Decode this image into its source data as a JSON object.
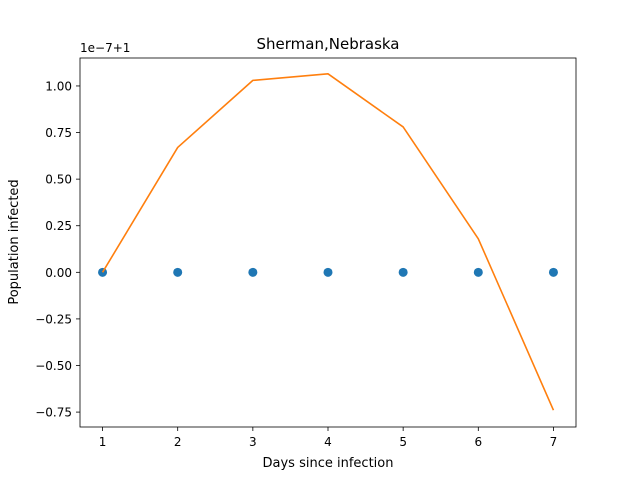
{
  "chart_data": {
    "type": "scatter",
    "title": "Sherman,Nebraska",
    "xlabel": "Days since infection",
    "ylabel": "Population infected",
    "offset_label": "1e−7+1",
    "x": [
      1,
      2,
      3,
      4,
      5,
      6,
      7
    ],
    "xlim": [
      0.7,
      7.3
    ],
    "ylim": [
      -0.83,
      1.15
    ],
    "xticks": [
      1,
      2,
      3,
      4,
      5,
      6,
      7
    ],
    "xtick_labels": [
      "1",
      "2",
      "3",
      "4",
      "5",
      "6",
      "7"
    ],
    "yticks": [
      -0.75,
      -0.5,
      -0.25,
      0.0,
      0.25,
      0.5,
      0.75,
      1.0
    ],
    "ytick_labels": [
      "−0.75",
      "−0.50",
      "−0.25",
      "0.00",
      "0.25",
      "0.50",
      "0.75",
      "1.00"
    ],
    "grid": false,
    "series": [
      {
        "type": "scatter",
        "color": "#1f77b4",
        "values": [
          0,
          0,
          0,
          0,
          0,
          0,
          0
        ]
      },
      {
        "type": "line",
        "color": "#ff7f0e",
        "values": [
          0.0,
          0.67,
          1.03,
          1.065,
          0.78,
          0.18,
          -0.74
        ]
      }
    ]
  }
}
